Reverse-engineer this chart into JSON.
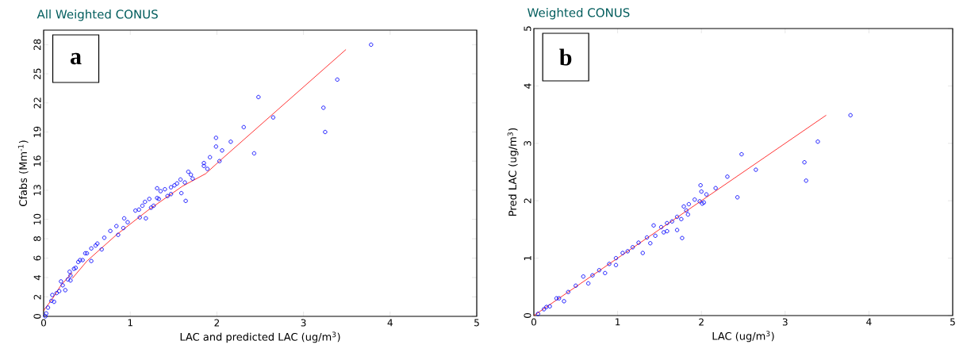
{
  "chart_data": [
    {
      "type": "scatter",
      "title": "All Weighted CONUS",
      "xlabel": "LAC and predicted LAC (ug/m$^{3}$)",
      "ylabel": "Cfabs (Mm$^{-1}$)",
      "annotations": [
        "a"
      ],
      "grid": false,
      "xlim": [
        0,
        5
      ],
      "ylim": [
        0,
        29.5
      ],
      "xticks": [
        0,
        1,
        2,
        3,
        4,
        5
      ],
      "yticks": [
        0,
        2,
        4,
        6,
        8,
        10,
        13,
        16,
        19,
        22,
        25,
        28
      ],
      "series": [
        {
          "marker": "circle",
          "color": "#0000ff",
          "x": [
            3.78,
            3.39,
            2.48,
            3.23,
            2.65,
            3.25,
            2.31,
            1.99,
            1.99,
            2.16,
            2.06,
            2.43,
            1.92,
            2.03,
            1.85,
            1.85,
            1.89,
            1.67,
            1.7,
            1.72,
            1.63,
            1.58,
            1.54,
            1.51,
            1.47,
            1.31,
            1.35,
            1.4,
            1.59,
            1.64,
            1.47,
            1.43,
            1.31,
            1.33,
            1.27,
            1.24,
            1.22,
            1.17,
            1.14,
            1.1,
            1.18,
            1.06,
            1.11,
            0.93,
            0.97,
            0.92,
            0.86,
            0.84,
            0.77,
            0.7,
            0.67,
            0.62,
            0.55,
            0.55,
            0.48,
            0.42,
            0.37,
            0.31,
            0.31,
            0.25,
            0.22,
            0.15,
            0.09,
            0.05,
            0.03,
            0.02,
            0.1,
            0.2,
            0.3,
            0.4,
            0.5,
            0.6,
            0.45,
            0.35,
            0.12,
            0.18,
            0.28
          ],
          "values": [
            28.0,
            24.4,
            22.6,
            21.5,
            20.5,
            19.0,
            19.5,
            18.4,
            17.5,
            18.0,
            17.1,
            16.8,
            16.4,
            16.0,
            15.8,
            15.5,
            15.2,
            14.9,
            14.6,
            14.2,
            13.8,
            14.1,
            13.7,
            13.5,
            13.3,
            13.2,
            12.9,
            13.1,
            12.7,
            11.9,
            12.6,
            12.4,
            12.2,
            12.1,
            11.4,
            11.2,
            12.1,
            11.8,
            11.4,
            11.0,
            10.1,
            10.9,
            10.2,
            10.1,
            9.7,
            9.1,
            8.4,
            9.3,
            8.8,
            8.1,
            6.9,
            7.5,
            7.0,
            5.7,
            6.5,
            5.8,
            5.0,
            4.2,
            3.7,
            2.7,
            3.2,
            2.4,
            1.6,
            0.9,
            0.3,
            0.0,
            2.2,
            3.6,
            4.6,
            5.6,
            6.5,
            7.3,
            5.8,
            4.9,
            1.5,
            2.6,
            3.8
          ]
        },
        {
          "type": "line",
          "marker": "none",
          "color": "#ff0000",
          "x": [
            0,
            0.1,
            0.2,
            0.33
          ],
          "values": [
            0.6,
            1.8,
            3.2,
            4.5
          ]
        },
        {
          "type": "line",
          "marker": "none",
          "color": "#ff0000",
          "x": [
            0.33,
            0.5,
            0.84,
            1.2,
            1.6,
            1.87,
            2.03,
            3.49
          ],
          "values": [
            3.9,
            5.7,
            8.4,
            10.9,
            13.4,
            14.7,
            16.0,
            27.5
          ]
        }
      ]
    },
    {
      "type": "scatter",
      "title": "Weighted CONUS",
      "xlabel": "LAC (ug/m$^{3}$)",
      "ylabel": "Pred LAC (ug/m$^{3}$)",
      "annotations": [
        "b"
      ],
      "grid": false,
      "xlim": [
        0,
        5
      ],
      "ylim": [
        0,
        5
      ],
      "xticks": [
        0,
        1,
        2,
        3,
        4,
        5
      ],
      "yticks": [
        0,
        1,
        2,
        3,
        4,
        5
      ],
      "series": [
        {
          "marker": "circle",
          "color": "#0000ff",
          "x": [
            3.78,
            3.39,
            3.23,
            3.25,
            2.48,
            2.65,
            2.31,
            2.43,
            2.17,
            1.99,
            2.0,
            2.06,
            1.92,
            1.98,
            2.03,
            2.01,
            1.85,
            1.79,
            1.82,
            1.84,
            1.76,
            1.71,
            1.77,
            1.71,
            1.65,
            1.59,
            1.59,
            1.55,
            1.43,
            1.45,
            1.52,
            1.3,
            1.39,
            1.35,
            1.25,
            1.18,
            1.06,
            0.98,
            0.98,
            0.85,
            0.78,
            0.65,
            0.59,
            0.36,
            0.41,
            0.27,
            0.19,
            0.12,
            0.05,
            0.5,
            0.7,
            0.9,
            0.3,
            0.15,
            1.12
          ],
          "values": [
            3.49,
            3.03,
            2.67,
            2.35,
            2.81,
            2.54,
            2.42,
            2.06,
            2.22,
            2.27,
            2.16,
            2.11,
            2.02,
            1.99,
            1.97,
            1.95,
            1.94,
            1.9,
            1.83,
            1.76,
            1.68,
            1.72,
            1.35,
            1.49,
            1.64,
            1.61,
            1.47,
            1.45,
            1.57,
            1.39,
            1.54,
            1.09,
            1.26,
            1.36,
            1.27,
            1.19,
            1.09,
            1.0,
            0.88,
            0.74,
            0.79,
            0.56,
            0.68,
            0.25,
            0.41,
            0.3,
            0.16,
            0.11,
            0.03,
            0.52,
            0.7,
            0.9,
            0.3,
            0.15,
            1.12
          ]
        },
        {
          "type": "line",
          "marker": "none",
          "color": "#ff0000",
          "x": [
            0,
            3.49
          ],
          "values": [
            0,
            3.49
          ]
        }
      ]
    }
  ]
}
